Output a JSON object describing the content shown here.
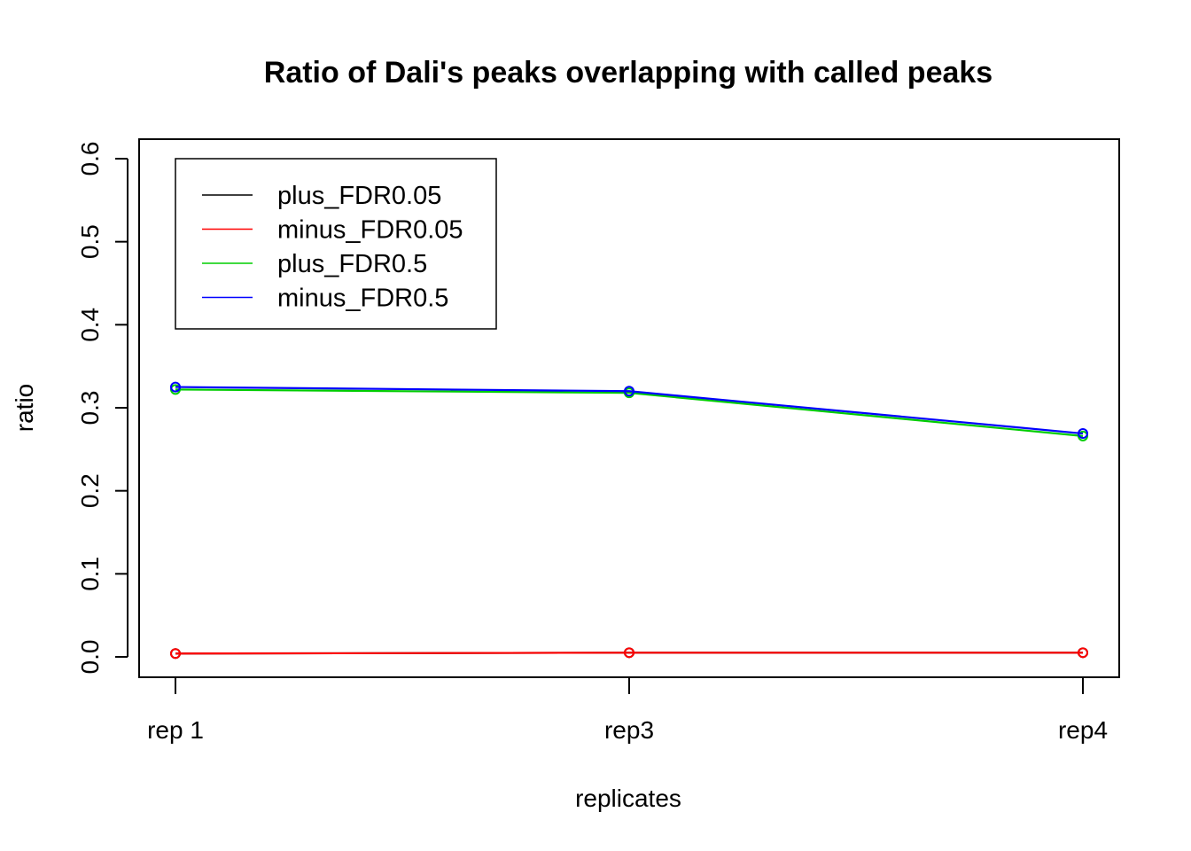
{
  "chart_data": {
    "type": "line",
    "title": "Ratio of Dali's peaks overlapping with called peaks",
    "xlabel": "replicates",
    "ylabel": "ratio",
    "categories": [
      "rep 1",
      "rep3",
      "rep4"
    ],
    "ylim": [
      0,
      0.6
    ],
    "yticks": [
      "0.0",
      "0.1",
      "0.2",
      "0.3",
      "0.4",
      "0.5",
      "0.6"
    ],
    "grid": false,
    "legend_position": "top-left",
    "series": [
      {
        "name": "plus_FDR0.05",
        "color": "#000000",
        "values": [
          0.004,
          0.005,
          0.005
        ]
      },
      {
        "name": "minus_FDR0.05",
        "color": "#ff0000",
        "values": [
          0.004,
          0.005,
          0.005
        ]
      },
      {
        "name": "plus_FDR0.5",
        "color": "#00cd00",
        "values": [
          0.322,
          0.318,
          0.266
        ]
      },
      {
        "name": "minus_FDR0.5",
        "color": "#0000ff",
        "values": [
          0.325,
          0.32,
          0.269
        ]
      }
    ]
  }
}
